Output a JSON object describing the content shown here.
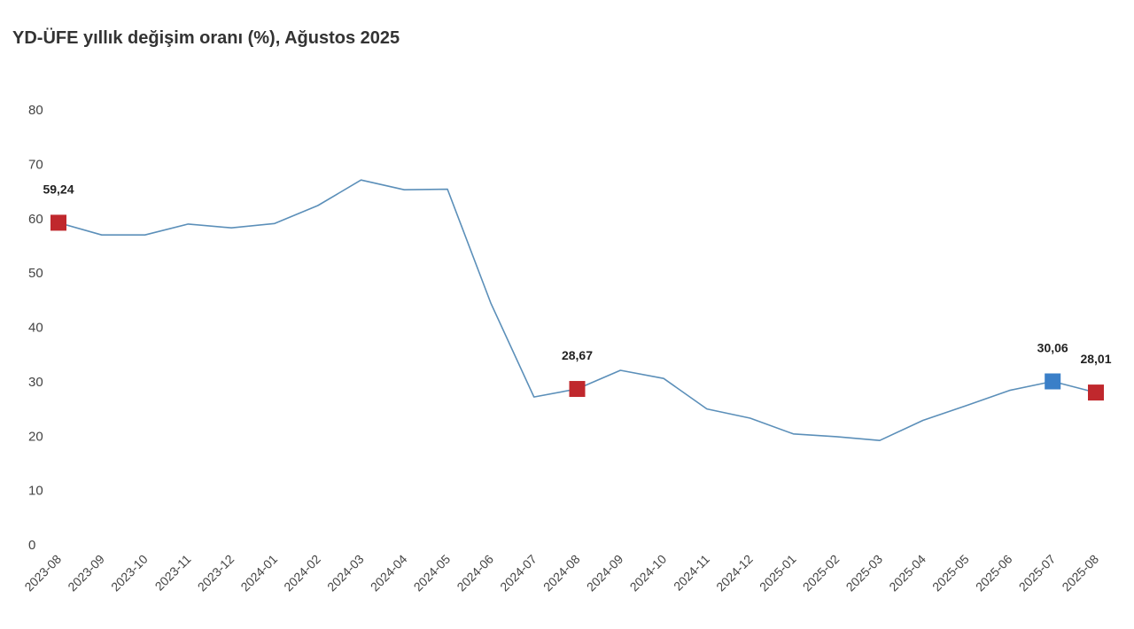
{
  "chart_data": {
    "type": "line",
    "title": "YD-ÜFE yıllık değişim oranı (%), Ağustos 2025",
    "xlabel": "",
    "ylabel": "",
    "ylim": [
      0,
      80
    ],
    "yticks": [
      "0",
      "10",
      "20",
      "30",
      "40",
      "50",
      "60",
      "70",
      "80"
    ],
    "grid": false,
    "categories": [
      "2023-08",
      "2023-09",
      "2023-10",
      "2023-11",
      "2023-12",
      "2024-01",
      "2024-02",
      "2024-03",
      "2024-04",
      "2024-05",
      "2024-06",
      "2024-07",
      "2024-08",
      "2024-09",
      "2024-10",
      "2024-11",
      "2024-12",
      "2025-01",
      "2025-02",
      "2025-03",
      "2025-04",
      "2025-05",
      "2025-06",
      "2025-07",
      "2025-08"
    ],
    "series": [
      {
        "values": [
          59.24,
          57.0,
          57.0,
          59.0,
          58.3,
          59.1,
          62.4,
          67.1,
          65.3,
          65.4,
          44.5,
          27.2,
          28.67,
          32.1,
          30.6,
          25.0,
          23.3,
          20.4,
          19.9,
          19.2,
          22.9,
          25.6,
          28.4,
          30.06,
          28.01
        ],
        "color": "#5b8fb9"
      }
    ],
    "highlighted_points": [
      {
        "index": 0,
        "label": "59,24",
        "color": "#c0282d"
      },
      {
        "index": 12,
        "label": "28,67",
        "color": "#c0282d"
      },
      {
        "index": 23,
        "label": "30,06",
        "color": "#3a7fc8"
      },
      {
        "index": 24,
        "label": "28,01",
        "color": "#c0282d"
      }
    ]
  }
}
